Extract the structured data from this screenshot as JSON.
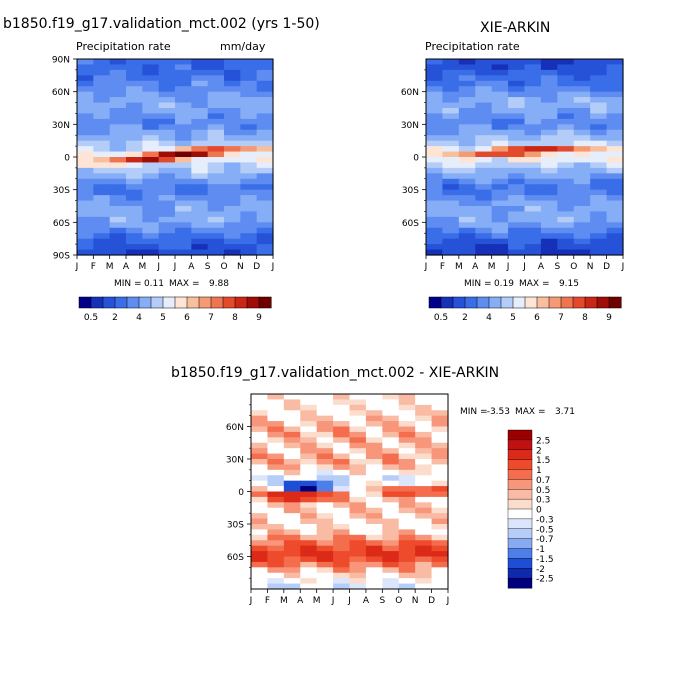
{
  "chart_data": [
    {
      "type": "heatmap",
      "title": "b1850.f19_g17.validation_mct.002 (yrs 1-50)",
      "subtitle_left": "Precipitation rate",
      "subtitle_right": "mm/day",
      "x_ticks": [
        "J",
        "F",
        "M",
        "A",
        "M",
        "J",
        "J",
        "A",
        "S",
        "O",
        "N",
        "D",
        "J"
      ],
      "y_ticks": [
        "90N",
        "60N",
        "30N",
        "0",
        "30S",
        "60S",
        "90S"
      ],
      "ylim": [
        -90,
        90
      ],
      "min_label": "MIN =",
      "min": "0.11",
      "max_label": "MAX =",
      "max": "9.88",
      "colorbar_labels": [
        "0.5",
        "2",
        "4",
        "5",
        "6",
        "7",
        "8",
        "9"
      ],
      "colors": [
        "#00008b",
        "#1630b8",
        "#2652d8",
        "#3a6ee8",
        "#5e8cf0",
        "#86aef6",
        "#b4ccf8",
        "#e6eefc",
        "#fde4d4",
        "#f8bf9e",
        "#f49b74",
        "#ef7550",
        "#e34a2c",
        "#c92616",
        "#a00c06",
        "#700000"
      ],
      "bands": [
        {
          "lat": 85,
          "v": 0.2
        },
        {
          "lat": 70,
          "v": 0.25
        },
        {
          "lat": 50,
          "v": 0.34
        },
        {
          "lat": 30,
          "v": 0.27
        },
        {
          "lat": 15,
          "v": 0.38
        },
        {
          "lat": 0,
          "v": 0.48
        },
        {
          "lat": -15,
          "v": 0.36
        },
        {
          "lat": -30,
          "v": 0.24
        },
        {
          "lat": -45,
          "v": 0.32
        },
        {
          "lat": -60,
          "v": 0.34
        },
        {
          "lat": -75,
          "v": 0.2
        },
        {
          "lat": -88,
          "v": 0.14
        }
      ],
      "itcz": {
        "lat_start": -5,
        "lat_peak": 8,
        "month_shift": 6.5,
        "width": 7,
        "peak": 0.98
      }
    },
    {
      "type": "heatmap",
      "title": "XIE-ARKIN",
      "subtitle_left": "Precipitation rate",
      "x_ticks": [
        "J",
        "F",
        "M",
        "A",
        "M",
        "J",
        "J",
        "A",
        "S",
        "O",
        "N",
        "D",
        "J"
      ],
      "y_ticks": [
        "60N",
        "30N",
        "0",
        "30S",
        "60S"
      ],
      "ylim": [
        -90,
        90
      ],
      "min_label": "MIN =",
      "min": "0.19",
      "max_label": "MAX =",
      "max": "9.15",
      "colorbar_labels": [
        "0.5",
        "2",
        "4",
        "5",
        "6",
        "7",
        "8",
        "9"
      ],
      "colors": [
        "#00008b",
        "#1630b8",
        "#2652d8",
        "#3a6ee8",
        "#5e8cf0",
        "#86aef6",
        "#b4ccf8",
        "#e6eefc",
        "#fde4d4",
        "#f8bf9e",
        "#f49b74",
        "#ef7550",
        "#e34a2c",
        "#c92616",
        "#a00c06",
        "#700000"
      ],
      "bands": [
        {
          "lat": 85,
          "v": 0.14
        },
        {
          "lat": 70,
          "v": 0.22
        },
        {
          "lat": 50,
          "v": 0.36
        },
        {
          "lat": 30,
          "v": 0.26
        },
        {
          "lat": 15,
          "v": 0.4
        },
        {
          "lat": 0,
          "v": 0.5
        },
        {
          "lat": -15,
          "v": 0.34
        },
        {
          "lat": -30,
          "v": 0.22
        },
        {
          "lat": -45,
          "v": 0.33
        },
        {
          "lat": -60,
          "v": 0.34
        },
        {
          "lat": -75,
          "v": 0.18
        },
        {
          "lat": -88,
          "v": 0.12
        }
      ],
      "itcz": {
        "lat_start": 2,
        "lat_peak": 9,
        "month_shift": 6.5,
        "width": 6,
        "peak": 0.92
      }
    },
    {
      "type": "heatmap",
      "title": "b1850.f19_g17.validation_mct.002 - XIE-ARKIN",
      "x_ticks": [
        "J",
        "F",
        "M",
        "A",
        "M",
        "J",
        "J",
        "A",
        "S",
        "O",
        "N",
        "D",
        "J"
      ],
      "y_ticks": [
        "60N",
        "30N",
        "0",
        "30S",
        "60S"
      ],
      "ylim": [
        -90,
        90
      ],
      "min_label": "MIN =",
      "min": "-3.53",
      "max_label": "MAX =",
      "max": "3.71",
      "colorbar_labels": [
        "2.5",
        "2",
        "1.5",
        "1",
        "0.7",
        "0.5",
        "0.3",
        "0",
        "-0.3",
        "-0.5",
        "-0.7",
        "-1",
        "-1.5",
        "-2",
        "-2.5"
      ],
      "colors": [
        "#9a0000",
        "#c01010",
        "#dc2a18",
        "#ee4a2c",
        "#f46e4e",
        "#f7967a",
        "#f9bba4",
        "#fcdccc",
        "#ffffff",
        "#dbe6fc",
        "#b6cdf8",
        "#88aaf2",
        "#4e7ee8",
        "#1e4ed4",
        "#0e2aac",
        "#00007e"
      ],
      "bands": [
        {
          "lat": 85,
          "v": 0.05
        },
        {
          "lat": 70,
          "v": 0.15
        },
        {
          "lat": 55,
          "v": 0.45
        },
        {
          "lat": 40,
          "v": 0.3
        },
        {
          "lat": 25,
          "v": 0.5
        },
        {
          "lat": 12,
          "v": -0.3
        },
        {
          "lat": 0,
          "v": 0.1
        },
        {
          "lat": -15,
          "v": 0.3
        },
        {
          "lat": -35,
          "v": 0.1
        },
        {
          "lat": -58,
          "v": 1.6
        },
        {
          "lat": -75,
          "v": 0.2
        },
        {
          "lat": -88,
          "v": -0.3
        }
      ],
      "anomalies": [
        {
          "month": 3.5,
          "lat": 4,
          "amp": -3.5,
          "dm": 1.3,
          "dl": 5
        },
        {
          "month": 3.0,
          "lat": -4,
          "amp": 2.8,
          "dm": 2.0,
          "dl": 4
        },
        {
          "month": 10.0,
          "lat": 0,
          "amp": 1.8,
          "dm": 2.0,
          "dl": 4
        }
      ]
    }
  ]
}
